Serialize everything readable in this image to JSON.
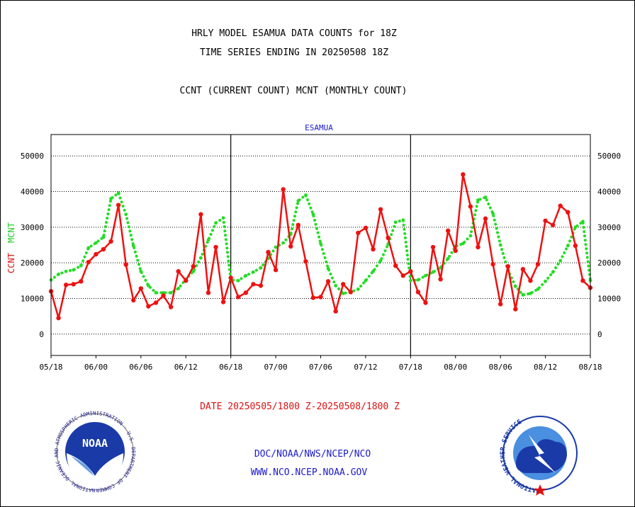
{
  "header": {
    "title_line1": "HRLY MODEL ESAMUA DATA COUNTS for 18Z",
    "title_line2": "TIME SERIES ENDING IN 20250508 18Z",
    "subtitle": "CCNT (CURRENT COUNT) MCNT (MONTHLY COUNT)"
  },
  "footer": {
    "date_range": "DATE 20250505/1800 Z-20250508/1800 Z",
    "org": "DOC/NOAA/NWS/NCEP/NCO",
    "url": "WWW.NCO.NCEP.NOAA.GOV",
    "noaa_logo_text": "NOAA",
    "noaa_seal_text": "NATIONAL OCEANIC AND ATMOSPHERIC ADMINISTRATION · U.S. DEPARTMENT OF COMMERCE",
    "nws_seal_text": "NATIONAL WEATHER SERVICE"
  },
  "colors": {
    "ccnt": "#ee1111",
    "mcnt": "#22dd22",
    "text_blue": "#1a1acc",
    "text_red": "#dd1111"
  },
  "chart_data": {
    "type": "line",
    "title": "ESAMUA",
    "ylabel_series": [
      "CCNT",
      "MCNT"
    ],
    "xlabel": "DATE 20250505/1800 Z-20250508/1800 Z",
    "ylim": [
      -6000,
      56000
    ],
    "y_ticks": [
      0,
      10000,
      20000,
      30000,
      40000,
      50000
    ],
    "y_tick_labels": [
      "0",
      "10000",
      "20000",
      "30000",
      "40000",
      "50000"
    ],
    "x_tick_labels": [
      "05/18",
      "06/00",
      "06/06",
      "06/12",
      "06/18",
      "07/00",
      "07/06",
      "07/12",
      "07/18",
      "08/00",
      "08/06",
      "08/12",
      "08/18"
    ],
    "hours_per_tick": 6,
    "day_dividers_at_hour": [
      24,
      48
    ],
    "grid": "horizontal-dotted",
    "series": [
      {
        "name": "CCNT",
        "color": "#ee1111",
        "style": "solid-dots",
        "values": [
          12000,
          4500,
          13800,
          14000,
          14800,
          20200,
          22400,
          23800,
          26000,
          36200,
          19500,
          9500,
          12800,
          7800,
          8800,
          10800,
          7600,
          17600,
          15000,
          19000,
          33600,
          11600,
          24400,
          9000,
          15800,
          10400,
          11600,
          14000,
          13600,
          23000,
          18000,
          40600,
          24600,
          30600,
          20400,
          10200,
          10400,
          14800,
          6400,
          14000,
          11800,
          28400,
          29800,
          23800,
          35000,
          27000,
          19200,
          16400,
          17600,
          11800,
          8800,
          24400,
          15400,
          29000,
          23400,
          44800,
          35800,
          24400,
          32400,
          19600,
          8400,
          19000,
          7000,
          18200,
          15000,
          19600,
          31800,
          30600,
          36000,
          34200,
          24800,
          15000,
          13000
        ]
      },
      {
        "name": "MCNT",
        "color": "#22dd22",
        "style": "dotted",
        "values": [
          15200,
          16800,
          17600,
          18000,
          19200,
          24200,
          25600,
          27200,
          38000,
          39600,
          33600,
          24800,
          17600,
          13600,
          11600,
          11600,
          11600,
          12800,
          15400,
          17600,
          21400,
          26400,
          31200,
          32600,
          15200,
          15000,
          16400,
          17400,
          18600,
          21200,
          24400,
          25600,
          28000,
          37400,
          39000,
          33600,
          25400,
          18400,
          13600,
          11400,
          11800,
          12600,
          15000,
          17600,
          20600,
          25200,
          31400,
          32000,
          15000,
          15200,
          16400,
          17400,
          18600,
          21200,
          24600,
          25400,
          27600,
          37600,
          38400,
          33800,
          25000,
          18000,
          13400,
          11000,
          11400,
          12600,
          14800,
          17400,
          20600,
          24800,
          30000,
          31600,
          15000
        ]
      }
    ]
  }
}
